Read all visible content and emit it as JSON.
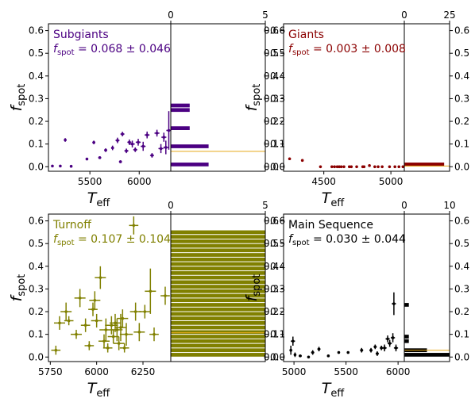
{
  "figure": {
    "ylabel": "f_spot",
    "xlabel": "T_eff"
  },
  "chart_data": [
    {
      "id": "subgiants",
      "type": "scatter",
      "label_title": "Subgiants",
      "label_value": "0.068 ± 0.046",
      "color": "#4b0082",
      "mean": 0.068,
      "xlim": [
        5080,
        6320
      ],
      "ylim": [
        -0.02,
        0.63
      ],
      "xticks": [
        5500,
        6000
      ],
      "yticks": [
        0.0,
        0.1,
        0.2,
        0.3,
        0.4,
        0.5,
        0.6
      ],
      "hist_xlim": [
        0,
        5
      ],
      "hist_ticks": [
        0,
        5
      ],
      "hist_bin_width": 0.02,
      "hist_counts": [
        2,
        0,
        0,
        0,
        2,
        0,
        0,
        0,
        1,
        0,
        0,
        0,
        1,
        1,
        0,
        0
      ],
      "points": [
        {
          "x": 5120,
          "y": 0.003,
          "xerr": 10,
          "yerr": 0.004
        },
        {
          "x": 5200,
          "y": 0.003,
          "xerr": 10,
          "yerr": 0.004
        },
        {
          "x": 5250,
          "y": 0.118,
          "xerr": 10,
          "yerr": 0.008
        },
        {
          "x": 5310,
          "y": 0.002,
          "xerr": 10,
          "yerr": 0.004
        },
        {
          "x": 5470,
          "y": 0.034,
          "xerr": 10,
          "yerr": 0.005
        },
        {
          "x": 5540,
          "y": 0.107,
          "xerr": 15,
          "yerr": 0.008
        },
        {
          "x": 5600,
          "y": 0.04,
          "xerr": 15,
          "yerr": 0.006
        },
        {
          "x": 5660,
          "y": 0.073,
          "xerr": 15,
          "yerr": 0.008
        },
        {
          "x": 5730,
          "y": 0.083,
          "xerr": 15,
          "yerr": 0.01
        },
        {
          "x": 5780,
          "y": 0.116,
          "xerr": 20,
          "yerr": 0.012
        },
        {
          "x": 5810,
          "y": 0.022,
          "xerr": 15,
          "yerr": 0.006
        },
        {
          "x": 5830,
          "y": 0.144,
          "xerr": 20,
          "yerr": 0.01
        },
        {
          "x": 5870,
          "y": 0.07,
          "xerr": 20,
          "yerr": 0.01
        },
        {
          "x": 5900,
          "y": 0.108,
          "xerr": 20,
          "yerr": 0.012
        },
        {
          "x": 5930,
          "y": 0.1,
          "xerr": 25,
          "yerr": 0.015
        },
        {
          "x": 5960,
          "y": 0.075,
          "xerr": 20,
          "yerr": 0.01
        },
        {
          "x": 5990,
          "y": 0.108,
          "xerr": 25,
          "yerr": 0.015
        },
        {
          "x": 6040,
          "y": 0.09,
          "xerr": 25,
          "yerr": 0.02
        },
        {
          "x": 6080,
          "y": 0.14,
          "xerr": 25,
          "yerr": 0.015
        },
        {
          "x": 6130,
          "y": 0.05,
          "xerr": 20,
          "yerr": 0.01
        },
        {
          "x": 6180,
          "y": 0.148,
          "xerr": 25,
          "yerr": 0.015
        },
        {
          "x": 6220,
          "y": 0.08,
          "xerr": 25,
          "yerr": 0.02
        },
        {
          "x": 6250,
          "y": 0.13,
          "xerr": 25,
          "yerr": 0.02
        },
        {
          "x": 6270,
          "y": 0.085,
          "xerr": 25,
          "yerr": 0.03
        },
        {
          "x": 6300,
          "y": 0.16,
          "xerr": 25,
          "yerr": 0.085
        }
      ]
    },
    {
      "id": "giants",
      "type": "scatter",
      "label_title": "Giants",
      "label_value": "0.003 ± 0.008",
      "color": "#8b0000",
      "mean": 0.003,
      "xlim": [
        4200,
        5100
      ],
      "ylim": [
        -0.02,
        0.63
      ],
      "xticks": [
        4500,
        5000
      ],
      "yticks": [
        0.0,
        0.1,
        0.2,
        0.3,
        0.4,
        0.5,
        0.6
      ],
      "hist_xlim": [
        0,
        25
      ],
      "hist_ticks": [
        0,
        25
      ],
      "hist_bin_width": 0.02,
      "hist_counts": [
        22,
        0,
        0
      ],
      "points": [
        {
          "x": 4245,
          "y": 0.035,
          "xerr": 5,
          "yerr": 0.004
        },
        {
          "x": 4340,
          "y": 0.028,
          "xerr": 5,
          "yerr": 0.004
        },
        {
          "x": 4475,
          "y": 0.0,
          "xerr": 5,
          "yerr": 0.003
        },
        {
          "x": 4560,
          "y": 0.0,
          "xerr": 5,
          "yerr": 0.003
        },
        {
          "x": 4580,
          "y": 0.0,
          "xerr": 5,
          "yerr": 0.003
        },
        {
          "x": 4600,
          "y": 0.0,
          "xerr": 5,
          "yerr": 0.003
        },
        {
          "x": 4615,
          "y": 0.0,
          "xerr": 5,
          "yerr": 0.003
        },
        {
          "x": 4630,
          "y": 0.0,
          "xerr": 5,
          "yerr": 0.003
        },
        {
          "x": 4650,
          "y": 0.0,
          "xerr": 5,
          "yerr": 0.003
        },
        {
          "x": 4690,
          "y": 0.0,
          "xerr": 5,
          "yerr": 0.003
        },
        {
          "x": 4705,
          "y": 0.0,
          "xerr": 5,
          "yerr": 0.003
        },
        {
          "x": 4745,
          "y": 0.0,
          "xerr": 5,
          "yerr": 0.003
        },
        {
          "x": 4790,
          "y": 0.0,
          "xerr": 5,
          "yerr": 0.003
        },
        {
          "x": 4800,
          "y": 0.0,
          "xerr": 5,
          "yerr": 0.003
        },
        {
          "x": 4840,
          "y": 0.005,
          "xerr": 5,
          "yerr": 0.003
        },
        {
          "x": 4880,
          "y": 0.0,
          "xerr": 5,
          "yerr": 0.003
        },
        {
          "x": 4905,
          "y": 0.0,
          "xerr": 5,
          "yerr": 0.003
        },
        {
          "x": 4935,
          "y": 0.0,
          "xerr": 5,
          "yerr": 0.003
        },
        {
          "x": 4990,
          "y": 0.0,
          "xerr": 5,
          "yerr": 0.003
        },
        {
          "x": 5030,
          "y": 0.0,
          "xerr": 5,
          "yerr": 0.003
        },
        {
          "x": 5060,
          "y": 0.0,
          "xerr": 5,
          "yerr": 0.003
        },
        {
          "x": 5090,
          "y": 0.0,
          "xerr": 5,
          "yerr": 0.003
        }
      ]
    },
    {
      "id": "turnoff",
      "type": "scatter",
      "label_title": "Turnoff",
      "label_value": "0.107 ± 0.104",
      "color": "#808000",
      "mean": 0.107,
      "xlim": [
        5740,
        6400
      ],
      "ylim": [
        -0.02,
        0.63
      ],
      "xticks": [
        5750,
        6000,
        6250
      ],
      "yticks": [
        0.0,
        0.1,
        0.2,
        0.3,
        0.4,
        0.5,
        0.6
      ],
      "hist_xlim": [
        0,
        5
      ],
      "hist_ticks": [
        0,
        5
      ],
      "hist_bin_width": 0.02,
      "hist_counts": [
        5,
        5,
        5,
        5,
        5,
        5,
        5,
        5,
        5,
        5,
        5,
        5,
        5,
        5,
        5,
        5,
        5,
        5,
        5,
        5,
        5,
        5,
        5,
        5,
        5,
        5,
        5,
        5
      ],
      "points": [
        {
          "x": 5780,
          "y": 0.03,
          "xerr": 25,
          "yerr": 0.02
        },
        {
          "x": 5800,
          "y": 0.15,
          "xerr": 30,
          "yerr": 0.03
        },
        {
          "x": 5835,
          "y": 0.2,
          "xerr": 30,
          "yerr": 0.04
        },
        {
          "x": 5850,
          "y": 0.16,
          "xerr": 25,
          "yerr": 0.02
        },
        {
          "x": 5890,
          "y": 0.1,
          "xerr": 30,
          "yerr": 0.02
        },
        {
          "x": 5910,
          "y": 0.26,
          "xerr": 30,
          "yerr": 0.04
        },
        {
          "x": 5940,
          "y": 0.14,
          "xerr": 25,
          "yerr": 0.03
        },
        {
          "x": 5960,
          "y": 0.05,
          "xerr": 25,
          "yerr": 0.02
        },
        {
          "x": 5980,
          "y": 0.21,
          "xerr": 25,
          "yerr": 0.03
        },
        {
          "x": 5990,
          "y": 0.25,
          "xerr": 30,
          "yerr": 0.04
        },
        {
          "x": 6000,
          "y": 0.16,
          "xerr": 30,
          "yerr": 0.03
        },
        {
          "x": 6020,
          "y": 0.35,
          "xerr": 30,
          "yerr": 0.05
        },
        {
          "x": 6040,
          "y": 0.07,
          "xerr": 30,
          "yerr": 0.03
        },
        {
          "x": 6050,
          "y": 0.12,
          "xerr": 35,
          "yerr": 0.05
        },
        {
          "x": 6060,
          "y": 0.04,
          "xerr": 25,
          "yerr": 0.02
        },
        {
          "x": 6080,
          "y": 0.14,
          "xerr": 35,
          "yerr": 0.04
        },
        {
          "x": 6090,
          "y": 0.09,
          "xerr": 30,
          "yerr": 0.03
        },
        {
          "x": 6100,
          "y": 0.15,
          "xerr": 30,
          "yerr": 0.04
        },
        {
          "x": 6110,
          "y": 0.12,
          "xerr": 30,
          "yerr": 0.05
        },
        {
          "x": 6120,
          "y": 0.06,
          "xerr": 30,
          "yerr": 0.03
        },
        {
          "x": 6130,
          "y": 0.13,
          "xerr": 30,
          "yerr": 0.06
        },
        {
          "x": 6140,
          "y": 0.17,
          "xerr": 30,
          "yerr": 0.04
        },
        {
          "x": 6150,
          "y": 0.04,
          "xerr": 25,
          "yerr": 0.02
        },
        {
          "x": 6160,
          "y": 0.1,
          "xerr": 35,
          "yerr": 0.05
        },
        {
          "x": 6200,
          "y": 0.58,
          "xerr": 25,
          "yerr": 0.04
        },
        {
          "x": 6210,
          "y": 0.2,
          "xerr": 30,
          "yerr": 0.04
        },
        {
          "x": 6230,
          "y": 0.11,
          "xerr": 30,
          "yerr": 0.04
        },
        {
          "x": 6260,
          "y": 0.2,
          "xerr": 30,
          "yerr": 0.03
        },
        {
          "x": 6290,
          "y": 0.29,
          "xerr": 30,
          "yerr": 0.1
        },
        {
          "x": 6310,
          "y": 0.1,
          "xerr": 25,
          "yerr": 0.03
        },
        {
          "x": 6370,
          "y": 0.27,
          "xerr": 25,
          "yerr": 0.04
        }
      ]
    },
    {
      "id": "main_sequence",
      "type": "scatter",
      "label_title": "Main Sequence",
      "label_value": "0.030 ± 0.044",
      "color": "#000000",
      "mean": 0.03,
      "xlim": [
        4900,
        6060
      ],
      "ylim": [
        -0.02,
        0.63
      ],
      "xticks": [
        5000,
        5500,
        6000
      ],
      "yticks": [
        0.0,
        0.1,
        0.2,
        0.3,
        0.4,
        0.5,
        0.6
      ],
      "hist_xlim": [
        0,
        10
      ],
      "hist_ticks": [
        0,
        10
      ],
      "hist_bin_width": 0.02,
      "hist_counts": [
        10,
        5,
        0,
        1,
        1,
        0,
        0,
        0,
        0,
        0,
        0,
        1
      ],
      "points": [
        {
          "x": 4970,
          "y": 0.03,
          "xerr": 10,
          "yerr": 0.02
        },
        {
          "x": 4990,
          "y": 0.07,
          "xerr": 20,
          "yerr": 0.02
        },
        {
          "x": 5010,
          "y": 0.01,
          "xerr": 10,
          "yerr": 0.01
        },
        {
          "x": 5060,
          "y": 0.005,
          "xerr": 15,
          "yerr": 0.005
        },
        {
          "x": 5140,
          "y": 0.0,
          "xerr": 10,
          "yerr": 0.003
        },
        {
          "x": 5180,
          "y": 0.02,
          "xerr": 15,
          "yerr": 0.01
        },
        {
          "x": 5240,
          "y": 0.035,
          "xerr": 15,
          "yerr": 0.01
        },
        {
          "x": 5330,
          "y": 0.005,
          "xerr": 10,
          "yerr": 0.005
        },
        {
          "x": 5430,
          "y": 0.02,
          "xerr": 10,
          "yerr": 0.005
        },
        {
          "x": 5520,
          "y": 0.02,
          "xerr": 10,
          "yerr": 0.005
        },
        {
          "x": 5650,
          "y": 0.03,
          "xerr": 15,
          "yerr": 0.01
        },
        {
          "x": 5740,
          "y": 0.03,
          "xerr": 15,
          "yerr": 0.01
        },
        {
          "x": 5780,
          "y": 0.045,
          "xerr": 15,
          "yerr": 0.01
        },
        {
          "x": 5800,
          "y": 0.015,
          "xerr": 15,
          "yerr": 0.01
        },
        {
          "x": 5840,
          "y": 0.04,
          "xerr": 15,
          "yerr": 0.01
        },
        {
          "x": 5870,
          "y": 0.04,
          "xerr": 20,
          "yerr": 0.015
        },
        {
          "x": 5900,
          "y": 0.08,
          "xerr": 20,
          "yerr": 0.015
        },
        {
          "x": 5920,
          "y": 0.06,
          "xerr": 20,
          "yerr": 0.015
        },
        {
          "x": 5950,
          "y": 0.085,
          "xerr": 20,
          "yerr": 0.02
        },
        {
          "x": 5960,
          "y": 0.235,
          "xerr": 20,
          "yerr": 0.05
        },
        {
          "x": 5980,
          "y": 0.04,
          "xerr": 20,
          "yerr": 0.015
        }
      ]
    }
  ]
}
